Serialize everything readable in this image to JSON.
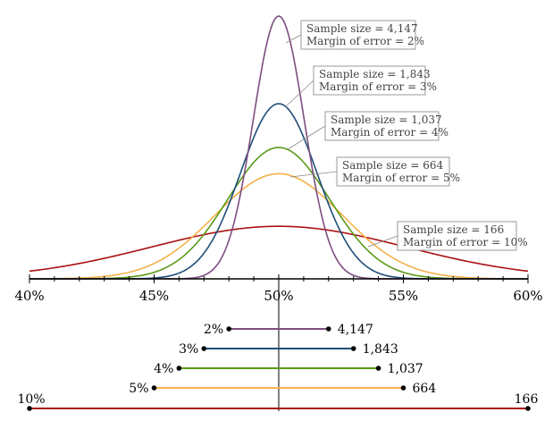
{
  "chart_data": {
    "type": "line",
    "x_axis": {
      "ticks": [
        "40%",
        "45%",
        "50%",
        "55%",
        "60%"
      ],
      "tick_values": [
        40,
        45,
        50,
        55,
        60
      ],
      "xlim": [
        40,
        60
      ]
    },
    "center": 50,
    "series": [
      {
        "sample_size": "4,147",
        "margin": "2%",
        "moe": 2,
        "color": "#7d4e7f",
        "annotation": [
          "Sample size = 4,147",
          "Margin of error = 2%"
        ]
      },
      {
        "sample_size": "1,843",
        "margin": "3%",
        "moe": 3,
        "color": "#1f4e79",
        "annotation": [
          "Sample size = 1,843",
          "Margin of error = 3%"
        ]
      },
      {
        "sample_size": "1,037",
        "margin": "4%",
        "moe": 4,
        "color": "#5a9a18",
        "annotation": [
          "Sample size = 1,037",
          "Margin of error = 4%"
        ]
      },
      {
        "sample_size": "664",
        "margin": "5%",
        "moe": 5,
        "color": "#f5b14a",
        "annotation": [
          "Sample size = 664",
          "Margin of error = 5%"
        ]
      },
      {
        "sample_size": "166",
        "margin": "10%",
        "moe": 10,
        "color": "#aa1111",
        "annotation": [
          "Sample size = 166",
          "Margin of error = 10%"
        ]
      }
    ]
  }
}
